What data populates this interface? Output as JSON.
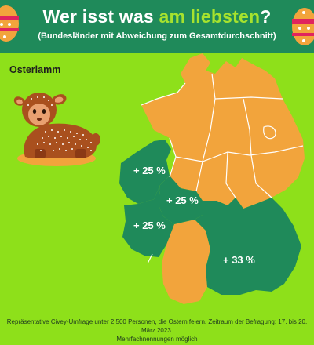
{
  "header": {
    "title_part1": "Wer isst was ",
    "title_highlight": "am liebsten",
    "title_part2": "?",
    "subtitle": "(Bundesländer mit Abweichung zum Gesamtdurchschnitt)"
  },
  "category": "Osterlamm",
  "map": {
    "highlighted_regions": [
      {
        "region": "Nordrhein-Westfalen",
        "label": "+ 25 %"
      },
      {
        "region": "Hessen",
        "label": "+ 25 %"
      },
      {
        "region": "Rheinland-Pfalz",
        "label": "+ 25 %"
      },
      {
        "region": "Bayern",
        "label": "+ 33 %"
      }
    ],
    "colors": {
      "highlight": "#1f8a5a",
      "other": "#f2a43c",
      "border": "#ffffff",
      "background": "#8ee01a"
    }
  },
  "footer": {
    "line1": "Repräsentative Civey-Umfrage unter 2.500 Personen, die Ostern feiern. Zeitraum der Befragung: 17. bis 20. März 2023.",
    "line2": "Mehrfachnennungen möglich"
  },
  "icons": [
    "easter-egg-icon",
    "easter-lamb-icon"
  ]
}
